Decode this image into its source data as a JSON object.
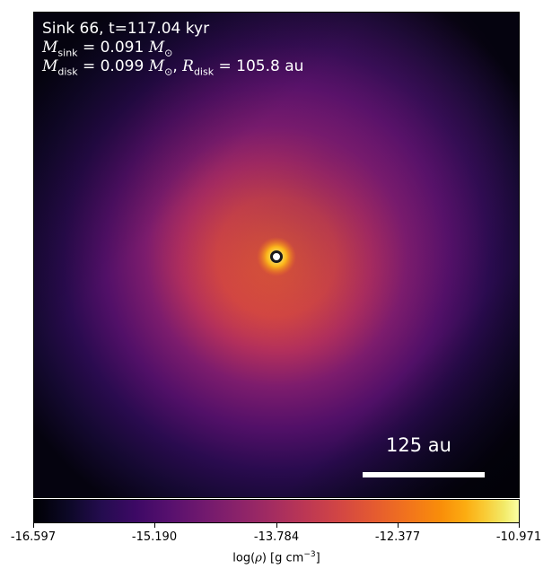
{
  "annotations": {
    "sink_line": "Sink 66, t=117.04 kyr",
    "msink_symbol": "M",
    "msink_sub": "sink",
    "msink_value": " = 0.091 ",
    "mdisk_symbol": "M",
    "mdisk_sub": "disk",
    "mdisk_value": " = 0.099 ",
    "rdisk_symbol": "R",
    "rdisk_sub": "disk",
    "rdisk_value": " = 105.8 au",
    "msun_symbol": "M",
    "msun_sub": "⊙"
  },
  "scale_bar": {
    "label": "125 au"
  },
  "colorbar": {
    "ticks": [
      "-16.597",
      "-15.190",
      "-13.784",
      "-12.377",
      "-10.971"
    ],
    "label_prefix": "log(",
    "label_rho": "ρ",
    "label_units": ") [g cm",
    "label_exp": "−3",
    "label_close": "]",
    "colormap": "inferno"
  },
  "colors": {
    "sink_marker_fill": "#ffffff",
    "sink_marker_edge": "#1a1a1a"
  }
}
